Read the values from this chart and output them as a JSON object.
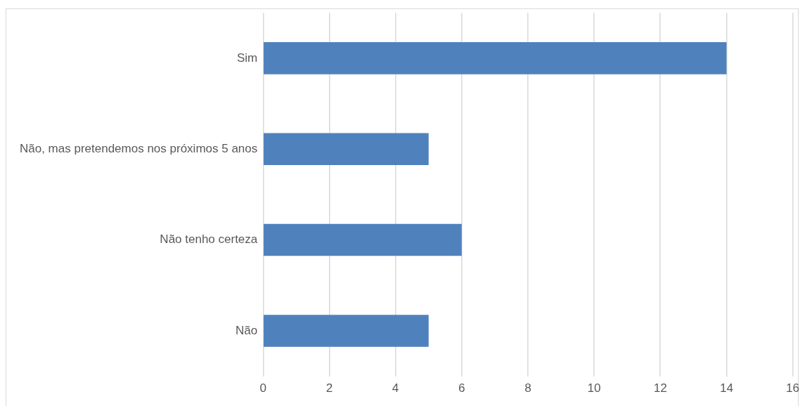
{
  "chart_data": {
    "type": "bar",
    "orientation": "horizontal",
    "categories": [
      "Sim",
      "Não, mas pretendemos nos próximos 5 anos",
      "Não tenho certeza",
      "Não"
    ],
    "values": [
      14,
      5,
      6,
      5
    ],
    "color": "#4f81bd",
    "xlim": [
      0,
      16
    ],
    "xticks": [
      0,
      2,
      4,
      6,
      8,
      10,
      12,
      14,
      16
    ],
    "grid": "x"
  }
}
